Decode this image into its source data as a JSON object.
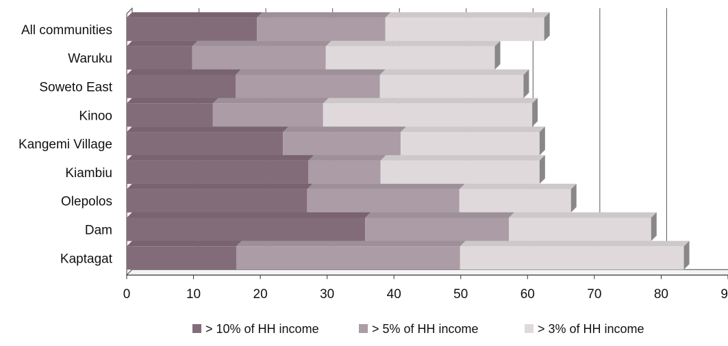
{
  "chart_data": {
    "type": "bar",
    "orientation": "horizontal",
    "stacked": true,
    "style": "3d",
    "categories": [
      "All communities",
      "Waruku",
      "Soweto East",
      "Kinoo",
      "Kangemi Village",
      "Kiambiu",
      "Olepolos",
      "Dam",
      "Kaptagat"
    ],
    "series": [
      {
        "name": "> 10% of HH income",
        "color": "#836c79",
        "values": [
          19.5,
          9.8,
          16.3,
          12.9,
          23.4,
          27.2,
          27.0,
          35.7,
          16.4
        ]
      },
      {
        "name": "> 5% of HH income",
        "color": "#ab9ca5",
        "values": [
          19.2,
          20.0,
          21.6,
          16.5,
          17.6,
          10.8,
          22.8,
          21.5,
          33.5
        ]
      },
      {
        "name": "> 3% of HH income",
        "color": "#dfd9dc",
        "values": [
          23.8,
          25.3,
          21.5,
          31.3,
          20.8,
          23.8,
          16.7,
          21.3,
          33.5
        ]
      }
    ],
    "xlim": [
      0,
      90
    ],
    "xticks": [
      0,
      10,
      20,
      30,
      40,
      50,
      60,
      70,
      80,
      90
    ],
    "xtick_labels": [
      "0",
      "10",
      "20",
      "30",
      "40",
      "50",
      "60",
      "70",
      "80",
      "90"
    ],
    "title": "",
    "xlabel": "",
    "ylabel": "",
    "grid": "vertical",
    "legend_position": "bottom"
  }
}
